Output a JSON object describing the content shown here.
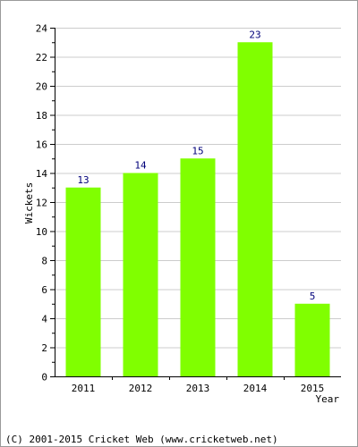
{
  "chart_data": {
    "type": "bar",
    "categories": [
      "2011",
      "2012",
      "2013",
      "2014",
      "2015"
    ],
    "values": [
      13,
      14,
      15,
      23,
      5
    ],
    "data_labels": [
      "13",
      "14",
      "15",
      "23",
      "5"
    ],
    "title": "",
    "xlabel": "Year",
    "ylabel": "Wickets",
    "ylim": [
      0,
      24
    ],
    "yticks": [
      0,
      2,
      4,
      6,
      8,
      10,
      12,
      14,
      16,
      18,
      20,
      22,
      24
    ],
    "ytick_labels": [
      "0",
      "2",
      "4",
      "6",
      "8",
      "10",
      "12",
      "14",
      "16",
      "18",
      "20",
      "22",
      "24"
    ],
    "grid": true,
    "legend": "none",
    "colors": {
      "bar": "#80ff00",
      "data_label": "#00007a",
      "grid": "#cccccc",
      "axis": "#000000"
    }
  },
  "footer": {
    "copyright": "(C) 2001-2015 Cricket Web (www.cricketweb.net)"
  }
}
